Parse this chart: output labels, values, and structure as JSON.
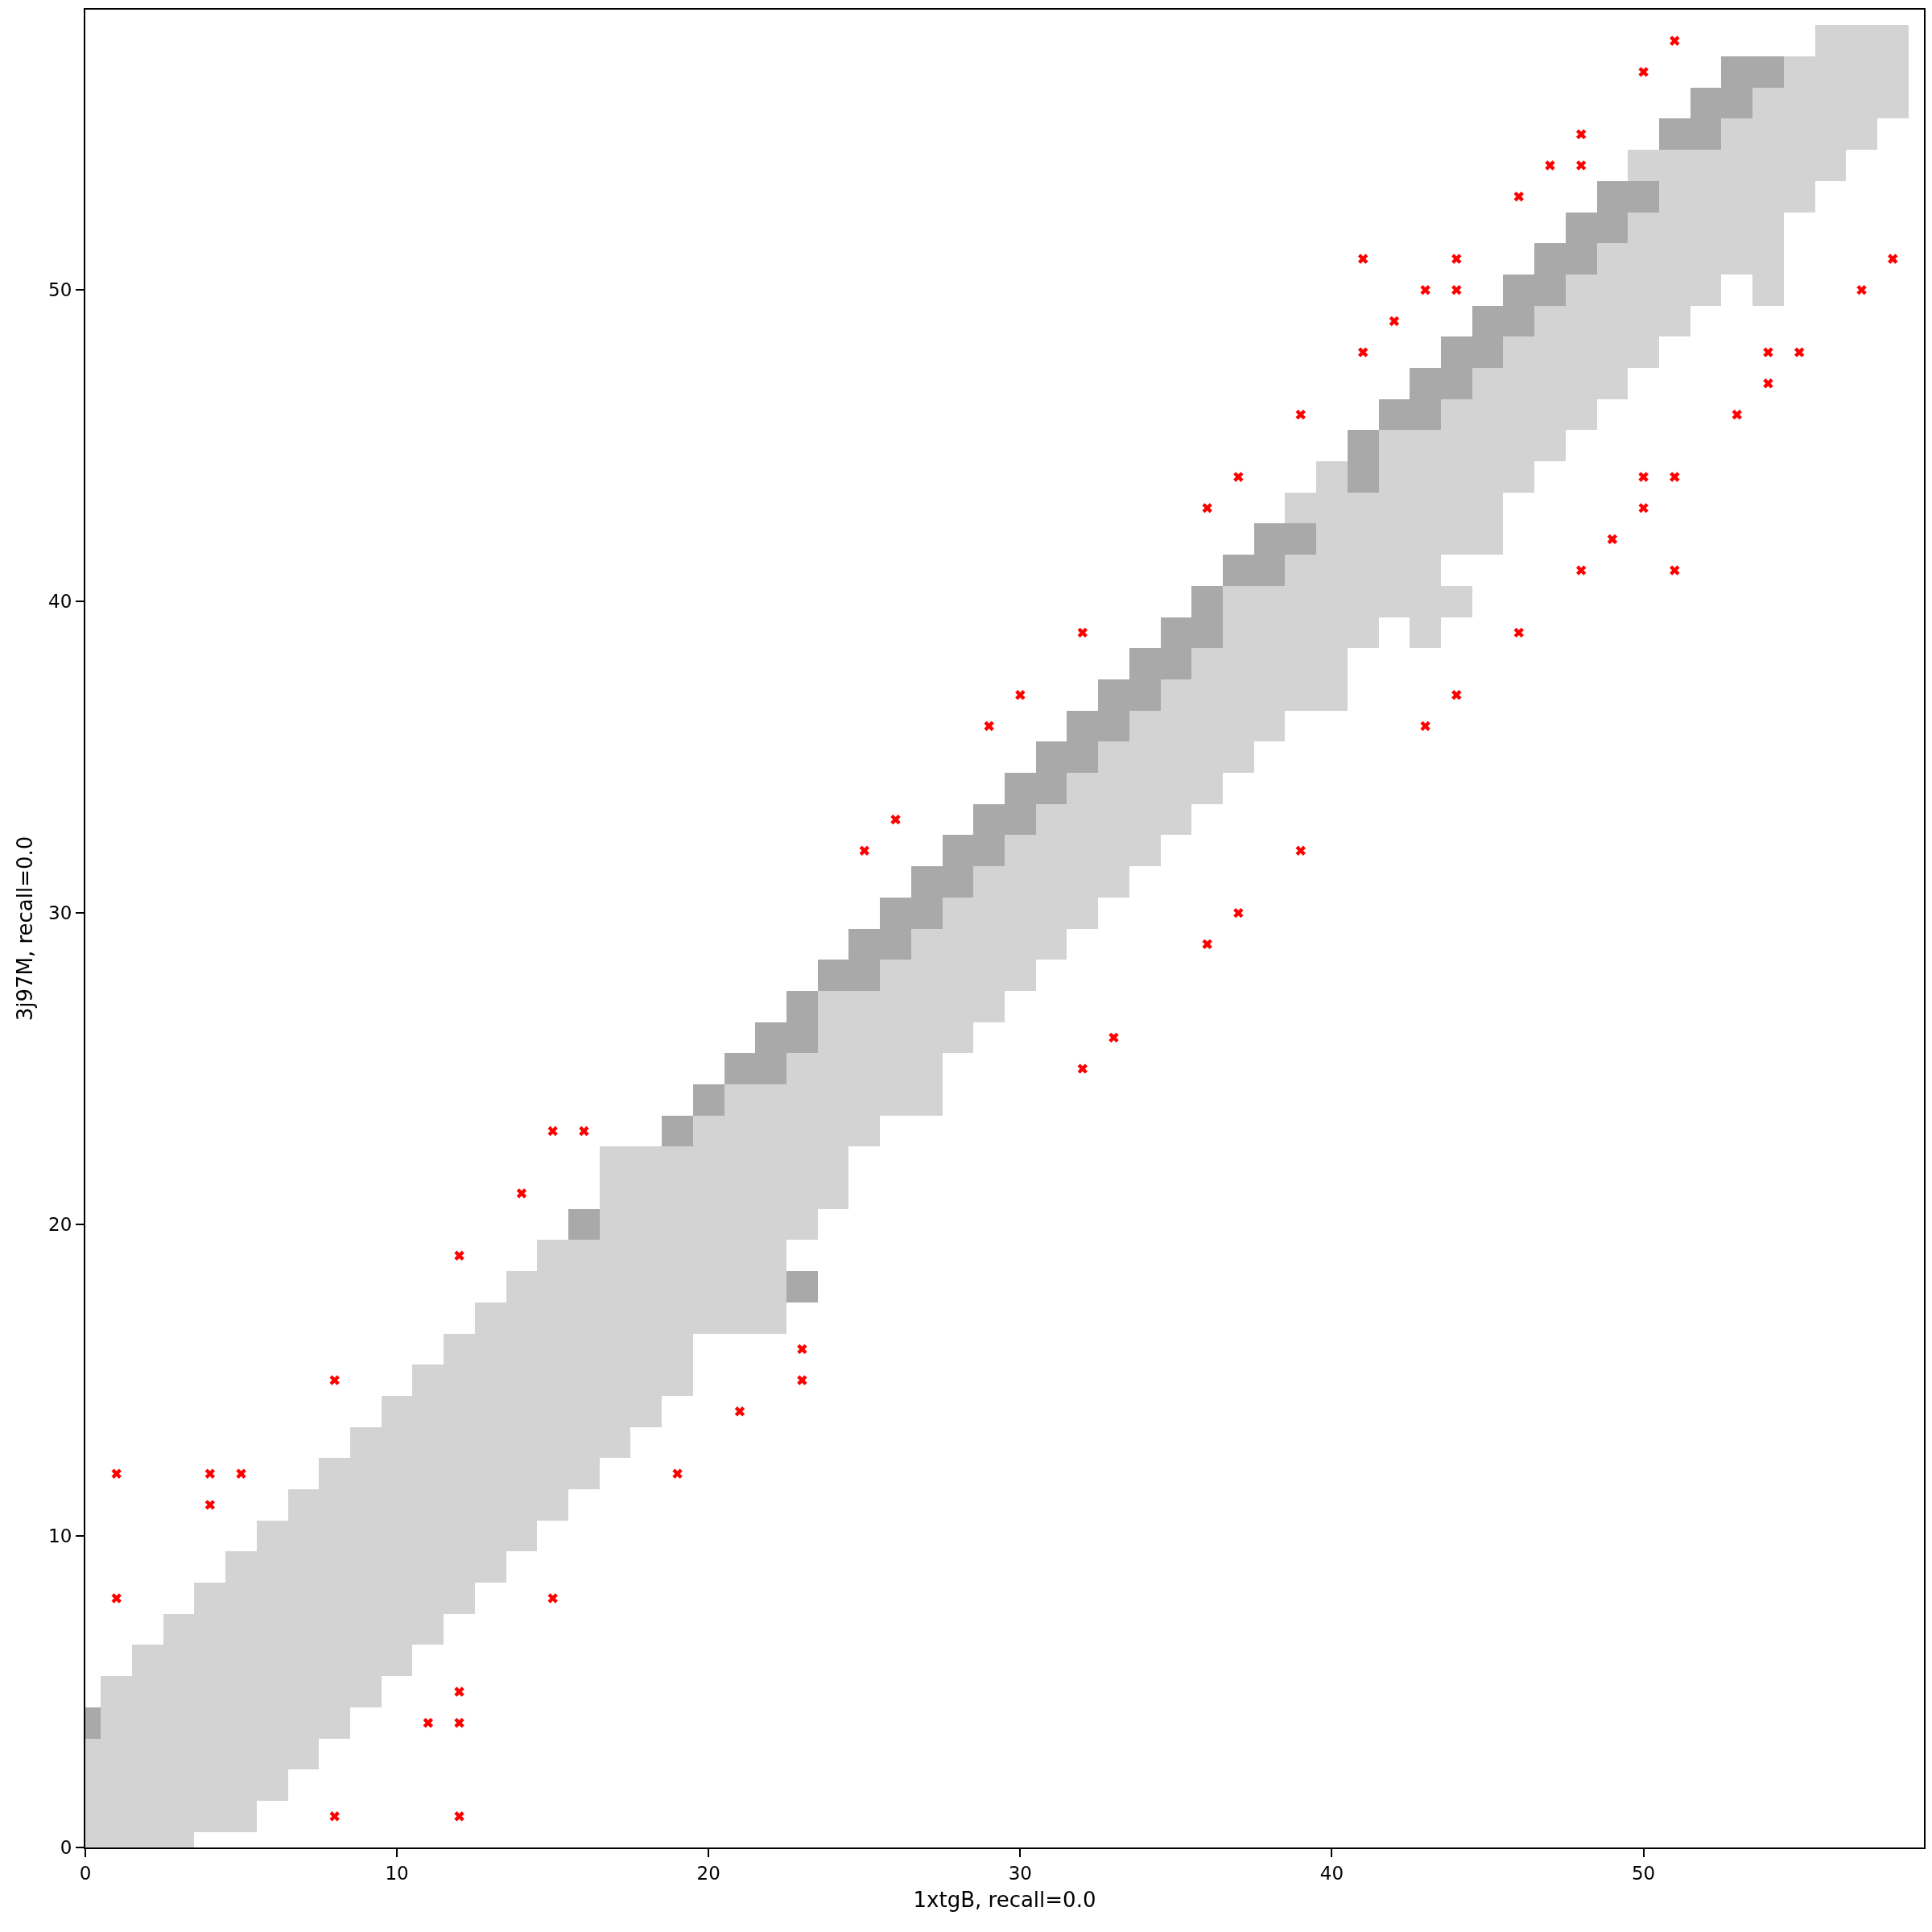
{
  "chart_data": {
    "type": "bar",
    "xlabel": "1xtgB, recall=0.0",
    "ylabel": "3j97M, recall=0.0",
    "xlim": [
      0,
      59
    ],
    "ylim": [
      0,
      59
    ],
    "xticks": [
      0,
      10,
      20,
      30,
      40,
      50
    ],
    "yticks": [
      0,
      10,
      20,
      30,
      40,
      50
    ],
    "grid": false,
    "marker": "cross",
    "series": [
      {
        "color": "#d3d3d3",
        "x": [
          0,
          1,
          2,
          3,
          4,
          5,
          6,
          7,
          8,
          9,
          10,
          11,
          12,
          13,
          14,
          15,
          16,
          17,
          18,
          19,
          20,
          21,
          22,
          23,
          24,
          25,
          26,
          27,
          28,
          29,
          30,
          31,
          32,
          33,
          34,
          35,
          36,
          37,
          38,
          39,
          40,
          41,
          42,
          43,
          44,
          45,
          46,
          47,
          48,
          49,
          50,
          51,
          52,
          53,
          54,
          55,
          56,
          57,
          58
        ],
        "base": [
          0,
          0,
          0,
          0,
          0.5,
          0.5,
          1.5,
          2.5,
          3.5,
          4.5,
          5.5,
          6.5,
          7.5,
          8.5,
          9.5,
          10.5,
          11.5,
          12.5,
          13.5,
          14.5,
          16.5,
          16.5,
          16.5,
          19.5,
          20.5,
          22.5,
          23.5,
          23.5,
          25.5,
          26.5,
          27.5,
          28.5,
          29.5,
          30.5,
          31.5,
          32.5,
          33.5,
          34.5,
          35.5,
          36.5,
          36.5,
          38.5,
          39.5,
          38.5,
          41.5,
          41.5,
          43.5,
          44.5,
          45.5,
          46.5,
          47.5,
          48.5,
          49.5,
          50.5,
          49.5,
          52.5,
          53.5,
          54.5,
          55.5
        ],
        "values": [
          3.5,
          5.5,
          6.5,
          7.5,
          8,
          9,
          9,
          9,
          9,
          9,
          9,
          9,
          9,
          9,
          9,
          9,
          8,
          10,
          9,
          8,
          7,
          8,
          8,
          6,
          7,
          5,
          5,
          6,
          5,
          5,
          5,
          5,
          5,
          5,
          5,
          5,
          5,
          6,
          5,
          5,
          8,
          5,
          6,
          7,
          5,
          6,
          5,
          5,
          5,
          5,
          5,
          6,
          5,
          5,
          7,
          5,
          5,
          4,
          3
        ]
      },
      {
        "color": "#d3d3d3",
        "x": [
          39,
          44,
          50
        ],
        "base": [
          42.5,
          39.5,
          53.5
        ],
        "values": [
          1,
          1,
          1
        ]
      },
      {
        "color": "#a9a9a9",
        "x": [
          0,
          16,
          19,
          20,
          21,
          22,
          23,
          24,
          25,
          26,
          27,
          28,
          29,
          30,
          31,
          32,
          33,
          34,
          35,
          36,
          37,
          38,
          39,
          41,
          42,
          43,
          44,
          45,
          46,
          47,
          48,
          49,
          50,
          51,
          52,
          53,
          54
        ],
        "base": [
          3.5,
          19.5,
          22.5,
          23.5,
          24.5,
          24.5,
          25.5,
          27.5,
          27.5,
          28.5,
          29.5,
          30.5,
          31.5,
          32.5,
          33.5,
          34.5,
          35.5,
          36.5,
          37.5,
          38.5,
          40.5,
          40.5,
          41.5,
          43.5,
          45.5,
          45.5,
          46.5,
          47.5,
          48.5,
          49.5,
          50.5,
          51.5,
          52.5,
          54.5,
          54.5,
          55.5,
          56.5
        ],
        "values": [
          1,
          1,
          1,
          1,
          1,
          2,
          2,
          1,
          2,
          2,
          2,
          2,
          2,
          2,
          2,
          2,
          2,
          2,
          2,
          2,
          1,
          2,
          1,
          2,
          1,
          2,
          2,
          2,
          2,
          2,
          2,
          2,
          1,
          1,
          2,
          2,
          1
        ]
      },
      {
        "color": "#a9a9a9",
        "x": [
          23
        ],
        "base": [
          17.5
        ],
        "values": [
          1
        ]
      },
      {
        "type": "scatter",
        "color": "#ff0000",
        "x": [
          1,
          1,
          4,
          4,
          5,
          8,
          8,
          11,
          12,
          12,
          12,
          12,
          14,
          15,
          16,
          15,
          19,
          21,
          23,
          23,
          25,
          26,
          29,
          30,
          32,
          32,
          33,
          36,
          36,
          37,
          37,
          39,
          39,
          41,
          41,
          42,
          43,
          43,
          44,
          44,
          44,
          46,
          46,
          47,
          48,
          48,
          48,
          49,
          50,
          50,
          50,
          51,
          51,
          51,
          53,
          54,
          54,
          55,
          57,
          58
        ],
        "values": [
          12,
          8,
          12,
          11,
          12,
          15,
          1,
          4,
          5,
          4,
          1,
          19,
          21,
          23,
          23,
          8,
          12,
          14,
          16,
          15,
          32,
          33,
          36,
          37,
          39,
          25,
          26,
          43,
          29,
          44,
          30,
          46,
          32,
          51,
          48,
          49,
          50,
          36,
          51,
          50,
          37,
          53,
          39,
          54,
          55,
          54,
          41,
          42,
          57,
          44,
          43,
          58,
          44,
          41,
          46,
          48,
          47,
          48,
          50,
          51
        ]
      }
    ]
  }
}
